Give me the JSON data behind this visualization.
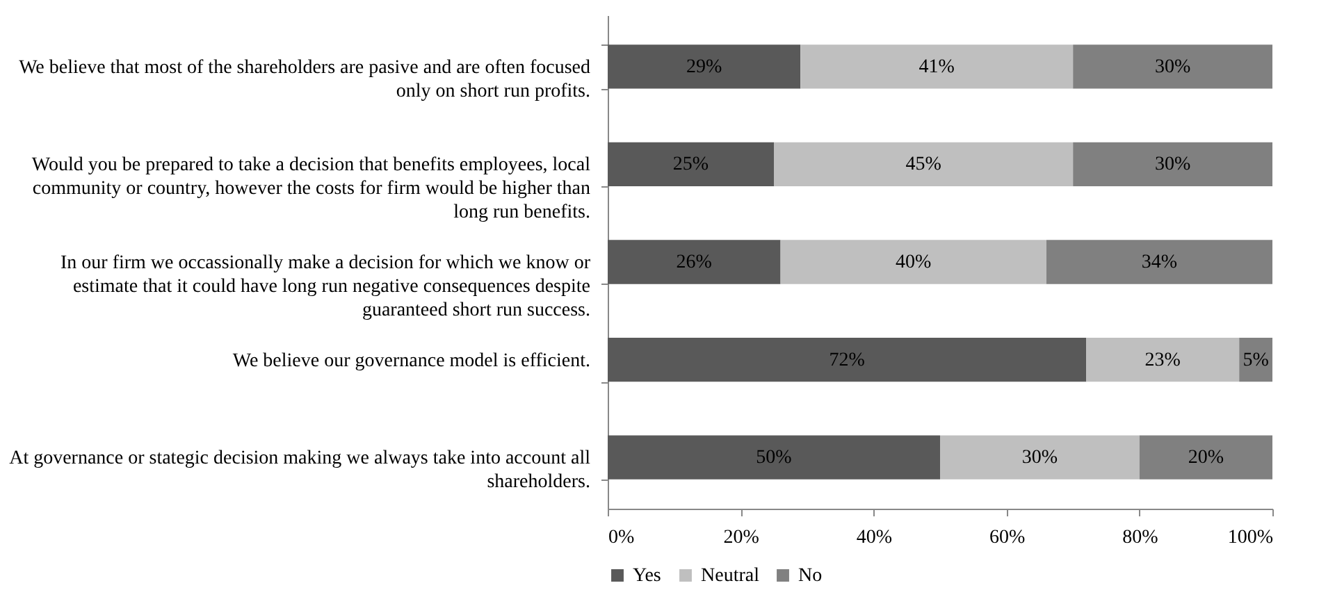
{
  "chart_data": {
    "type": "bar",
    "orientation": "horizontal",
    "stacked": true,
    "categories": [
      "We believe that most of the shareholders are pasive and are often focused only on short run profits.",
      "Would you be prepared to take a decision that benefits employees, local community or country, however the costs for firm would be higher than long run benefits.",
      "In our firm we occassionally make a decision for which we know or estimate that it could have long run negative consequences despite guaranteed short run success.",
      "We believe our governance model is efficient.",
      "At governance or stategic decision making we always take into account all shareholders."
    ],
    "series": [
      {
        "name": "Yes",
        "color": "#595959",
        "values": [
          29,
          25,
          26,
          72,
          50
        ],
        "value_labels": [
          "29%",
          "25%",
          "26%",
          "72%",
          "50%"
        ]
      },
      {
        "name": "Neutral",
        "color": "#bfbfbf",
        "values": [
          41,
          45,
          40,
          23,
          30
        ],
        "value_labels": [
          "41%",
          "45%",
          "40%",
          "23%",
          "30%"
        ]
      },
      {
        "name": "No",
        "color": "#808080",
        "values": [
          30,
          30,
          34,
          5,
          20
        ],
        "value_labels": [
          "30%",
          "30%",
          "34%",
          "5%",
          "20%"
        ]
      }
    ],
    "xlim": [
      0,
      100
    ],
    "xticks": [
      {
        "value": 0,
        "label": "0%"
      },
      {
        "value": 20,
        "label": "20%"
      },
      {
        "value": 40,
        "label": "40%"
      },
      {
        "value": 60,
        "label": "60%"
      },
      {
        "value": 80,
        "label": "80%"
      },
      {
        "value": 100,
        "label": "100%"
      }
    ],
    "grid": false,
    "legend": "bottom"
  }
}
